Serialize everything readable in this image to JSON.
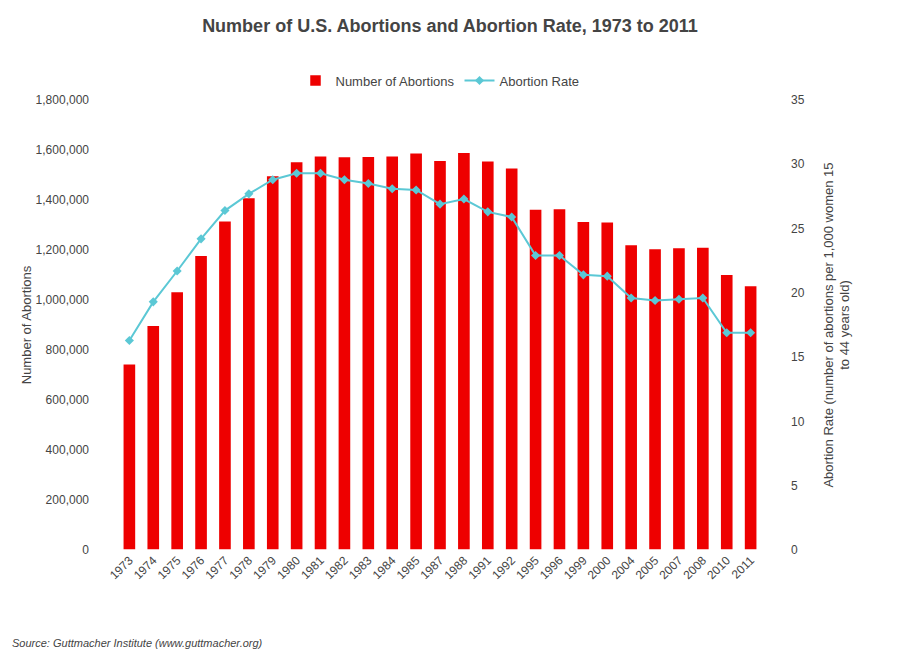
{
  "chart_data": {
    "type": "bar",
    "title": "Number of U.S. Abortions and Abortion Rate, 1973 to 2011",
    "annotations": [
      "Source: Guttmacher Institute (www.guttmacher.org)"
    ],
    "categories": [
      "1973",
      "1974",
      "1975",
      "1976",
      "1977",
      "1978",
      "1979",
      "1980",
      "1981",
      "1982",
      "1983",
      "1984",
      "1985",
      "1987",
      "1988",
      "1991",
      "1992",
      "1995",
      "1996",
      "1999",
      "2000",
      "2004",
      "2005",
      "2007",
      "2008",
      "2010",
      "2011"
    ],
    "series": [
      {
        "name": "Number of Abortions",
        "type": "bar",
        "color": "#ee0000",
        "values": [
          744600,
          898600,
          1034200,
          1179300,
          1316700,
          1409600,
          1497700,
          1553900,
          1577340,
          1573920,
          1575000,
          1577180,
          1588600,
          1559110,
          1590750,
          1556510,
          1528930,
          1363690,
          1365730,
          1314800,
          1312990,
          1222100,
          1206200,
          1209640,
          1212350,
          1102670,
          1058490
        ]
      },
      {
        "name": "Abortion Rate",
        "type": "line",
        "axis": "y2",
        "color": "#5bc8d5",
        "marker": "diamond",
        "line_style": "solid",
        "values": [
          16.3,
          19.3,
          21.7,
          24.2,
          26.4,
          27.7,
          28.8,
          29.3,
          29.3,
          28.8,
          28.5,
          28.1,
          28.0,
          26.9,
          27.3,
          26.3,
          25.9,
          22.9,
          22.9,
          21.4,
          21.3,
          19.6,
          19.4,
          19.5,
          19.6,
          16.9,
          16.9
        ]
      }
    ],
    "ylabel": "Number of Abortions",
    "y2label": "Abortion Rate (number of abortions per 1,000 women 15\nto 44 years old)",
    "ylim": [
      0,
      1800000
    ],
    "yticks": [
      0,
      {
        "value": 200000,
        "label": "200,000"
      },
      {
        "value": 400000,
        "label": "400,000"
      },
      {
        "value": 600000,
        "label": "600,000"
      },
      {
        "value": 800000,
        "label": "800,000"
      },
      {
        "value": 1000000,
        "label": "1,000,000"
      },
      {
        "value": 1200000,
        "label": "1,200,000"
      },
      {
        "value": 1400000,
        "label": "1,400,000"
      },
      {
        "value": 1600000,
        "label": "1,600,000"
      },
      {
        "value": 1800000,
        "label": "1,800,000"
      }
    ],
    "y2lim": [
      0,
      35
    ],
    "y2ticks": [
      0,
      5,
      10,
      15,
      20,
      25,
      30,
      35
    ],
    "grid": false,
    "legend": "top"
  }
}
